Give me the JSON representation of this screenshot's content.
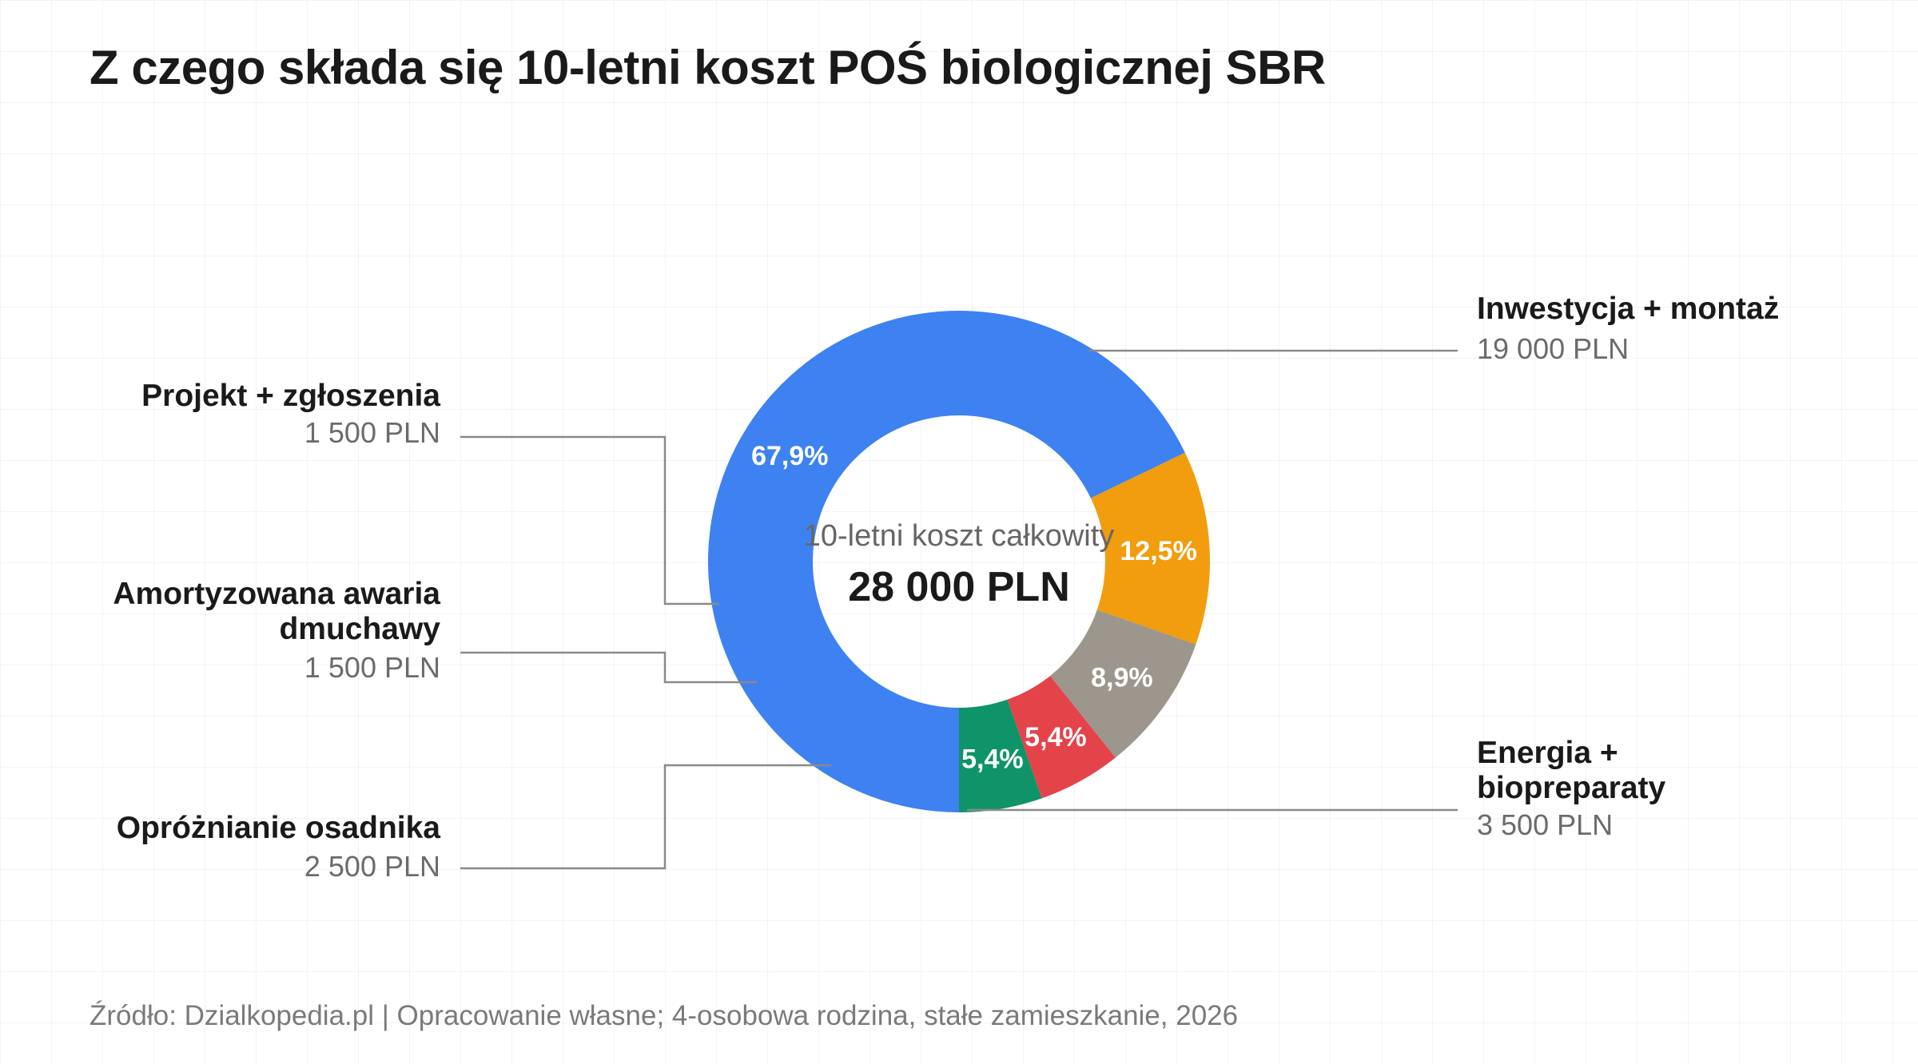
{
  "chart_data": {
    "type": "pie",
    "title": "Z czego składa się 10-letni koszt POŚ biologicznej SBR",
    "center_caption": "10-letni koszt całkowity",
    "center_total": "28 000 PLN",
    "slices": [
      {
        "name": "Inwestycja + montaż",
        "value": 19000,
        "value_label": "19 000 PLN",
        "percent_label": "67,9%",
        "color": "#3D82F0"
      },
      {
        "name": "Energia + biopreparaty",
        "value": 3500,
        "value_label": "3 500 PLN",
        "percent_label": "12,5%",
        "color": "#F29D0E"
      },
      {
        "name": "Opróżnianie osadnika",
        "value": 2500,
        "value_label": "2 500 PLN",
        "percent_label": "8,9%",
        "color": "#9C968D"
      },
      {
        "name": "Amortyzowana awaria dmuchawy",
        "value": 1500,
        "value_label": "1 500 PLN",
        "percent_label": "5,4%",
        "color": "#E5434A"
      },
      {
        "name": "Projekt + zgłoszenia",
        "value": 1500,
        "value_label": "1 500 PLN",
        "percent_label": "5,4%",
        "color": "#0E9468"
      }
    ],
    "legend": "callouts"
  },
  "source_note": "Źródło: Dzialkopedia.pl | Opracowanie własne; 4-osobowa rodzina, stałe zamieszkanie, 2026"
}
